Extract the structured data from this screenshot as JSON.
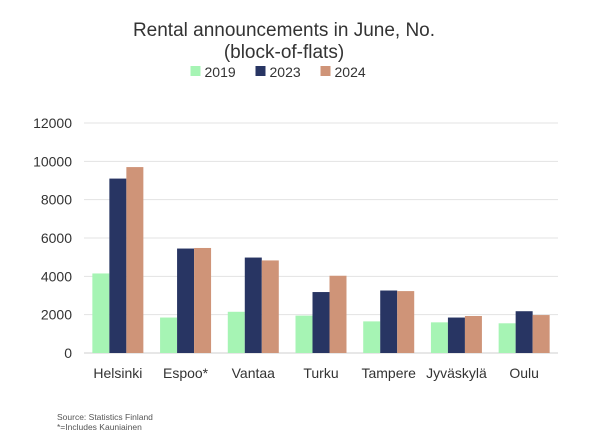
{
  "chart_data": {
    "type": "bar",
    "title": "Rental announcements in June, No.",
    "subtitle": "(block-of-flats)",
    "categories": [
      "Helsinki",
      "Espoo*",
      "Vantaa",
      "Turku",
      "Tampere",
      "Jyväskylä",
      "Oulu"
    ],
    "series": [
      {
        "name": "2019",
        "color": "#a6f4b4",
        "values": [
          4150,
          1850,
          2150,
          1950,
          1650,
          1600,
          1550
        ]
      },
      {
        "name": "2023",
        "color": "#283563",
        "values": [
          9100,
          5450,
          4980,
          3180,
          3260,
          1850,
          2180
        ]
      },
      {
        "name": "2024",
        "color": "#cf9478",
        "values": [
          9700,
          5480,
          4830,
          4030,
          3230,
          1930,
          1980
        ]
      }
    ],
    "yticks": [
      "0",
      "2000",
      "4000",
      "6000",
      "8000",
      "10000",
      "12000"
    ],
    "ylim": [
      0,
      12000
    ],
    "xlabel": "",
    "ylabel": "",
    "grid": true,
    "legend_position": "top-center"
  },
  "footer": {
    "source": "Source: Statistics Finland",
    "note": "*=Includes Kauniainen"
  }
}
